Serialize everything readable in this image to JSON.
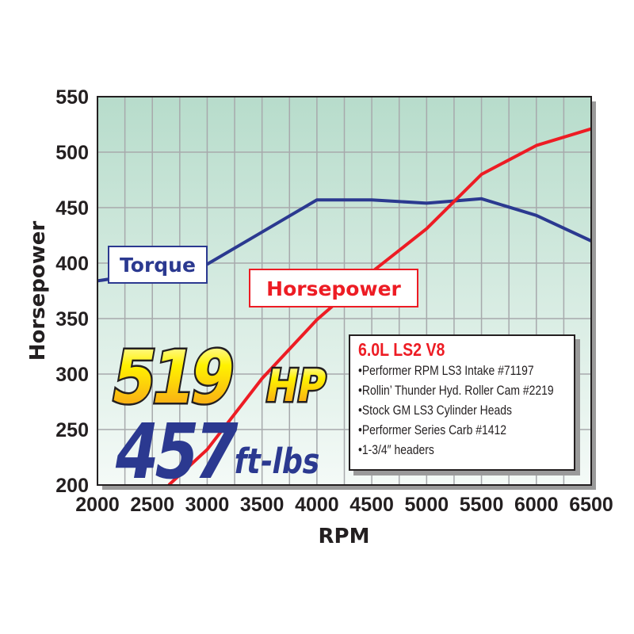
{
  "chart_data": {
    "type": "line",
    "xlabel": "RPM",
    "ylabel": "Horsepower",
    "xlim": [
      2000,
      6500
    ],
    "ylim": [
      200,
      550
    ],
    "x_ticks": [
      "2000",
      "2500",
      "3000",
      "3500",
      "4000",
      "4500",
      "5000",
      "5500",
      "6000",
      "6500"
    ],
    "y_ticks": [
      "200",
      "250",
      "300",
      "350",
      "400",
      "450",
      "500",
      "550"
    ],
    "grid": true,
    "series": [
      {
        "name": "Torque",
        "color": "#2b3990",
        "x": [
          2000,
          3000,
          3500,
          4000,
          4500,
          5000,
          5500,
          6000,
          6500
        ],
        "y": [
          384,
          399,
          428,
          457,
          457,
          454,
          458,
          443,
          420
        ]
      },
      {
        "name": "Horsepower",
        "color": "#ed1c24",
        "x": [
          2650,
          3000,
          3500,
          4000,
          4500,
          5000,
          5500,
          6000,
          6500
        ],
        "y": [
          200,
          232,
          296,
          349,
          392,
          431,
          480,
          506,
          521
        ]
      }
    ],
    "annotations": {
      "peak_hp": "519",
      "peak_hp_unit": "HP",
      "peak_torque": "457",
      "peak_torque_unit": "ft-lbs"
    }
  },
  "specs": {
    "title": "6.0L LS2 V8",
    "items": [
      "Performer RPM LS3 Intake #71197",
      "Rollin’ Thunder Hyd. Roller Cam #2219",
      "Stock GM LS3 Cylinder Heads",
      "Performer Series Carb #1412",
      "1-3/4″ headers"
    ]
  },
  "colors": {
    "plot_top": "#b7dccb",
    "plot_bottom": "#f4faf7",
    "grid": "#a7a9ac"
  }
}
